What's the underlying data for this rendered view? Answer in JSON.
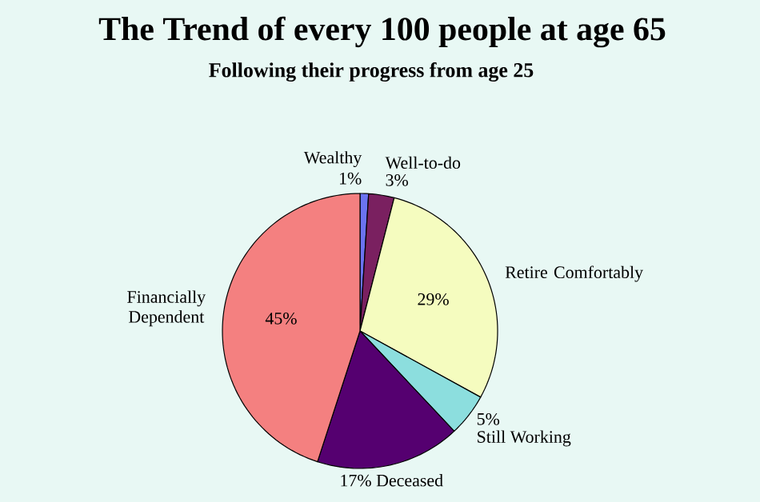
{
  "chart_data": {
    "type": "pie",
    "title": "The Trend of every 100 people at age 65",
    "subtitle": "Following their progress from age 25",
    "categories": [
      "Wealthy",
      "Well-to-do",
      "Retire Comfortably",
      "Still Working",
      "Deceased",
      "Financially Dependent"
    ],
    "values": [
      1,
      3,
      29,
      5,
      17,
      45
    ],
    "value_labels": [
      "1%",
      "3%",
      "29%",
      "5%",
      "17%",
      "45%"
    ],
    "colors": [
      "#6b73f0",
      "#7a2060",
      "#f5fcbf",
      "#8cdede",
      "#550070",
      "#f48080"
    ]
  }
}
